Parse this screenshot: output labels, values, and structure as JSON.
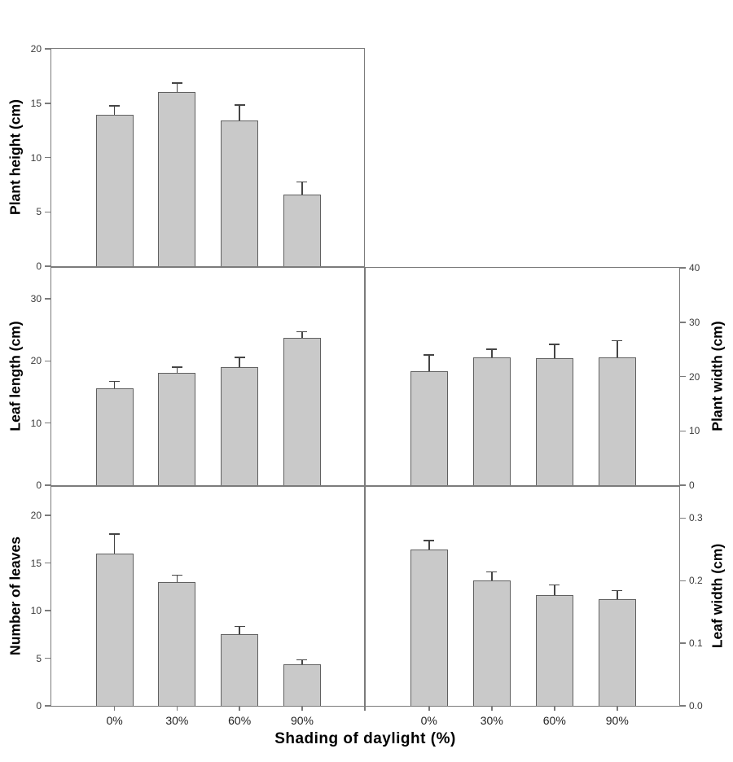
{
  "figure": {
    "xlabel": "Shading of daylight (%)",
    "categories": [
      "0%",
      "30%",
      "60%",
      "90%"
    ]
  },
  "colors": {
    "bar_fill": "#c9c9c9",
    "bar_border": "#606060",
    "axis": "#7b7b7b",
    "error_bar": "#454545",
    "tick_label": "#3b3b3b",
    "title_text": "#000000"
  },
  "chart_data": [
    {
      "id": "plant-height",
      "type": "bar",
      "ylabel": "Plant height (cm)",
      "axis_side": "left",
      "categories": [
        "0%",
        "30%",
        "60%",
        "90%"
      ],
      "values": [
        13.9,
        16.0,
        13.4,
        6.6
      ],
      "errors_plus": [
        0.9,
        0.9,
        1.5,
        1.2
      ],
      "ylim": [
        0,
        20
      ],
      "yticks": [
        0,
        5,
        10,
        15,
        20
      ],
      "ytick_labels": [
        "0",
        "5",
        "10",
        "15",
        "20"
      ],
      "grid": false
    },
    {
      "id": "leaf-length",
      "type": "bar",
      "ylabel": "Leaf length (cm)",
      "axis_side": "left",
      "categories": [
        "0%",
        "30%",
        "60%",
        "90%"
      ],
      "values": [
        15.6,
        18.1,
        19.0,
        23.7
      ],
      "errors_plus": [
        1.2,
        1.0,
        1.7,
        1.1
      ],
      "ylim": [
        0,
        35
      ],
      "yticks": [
        0,
        10,
        20,
        30
      ],
      "ytick_labels": [
        "0",
        "10",
        "20",
        "30"
      ],
      "grid": false
    },
    {
      "id": "plant-width",
      "type": "bar",
      "ylabel": "Plant width (cm)",
      "axis_side": "right",
      "categories": [
        "0%",
        "30%",
        "60%",
        "90%"
      ],
      "values": [
        21.0,
        23.5,
        23.3,
        23.5
      ],
      "errors_plus": [
        3.1,
        1.6,
        2.7,
        3.2
      ],
      "ylim": [
        0,
        40
      ],
      "yticks": [
        0,
        10,
        20,
        30,
        40
      ],
      "ytick_labels": [
        "0",
        "10",
        "20",
        "30",
        "40"
      ],
      "grid": false
    },
    {
      "id": "number-of-leaves",
      "type": "bar",
      "ylabel": "Number of leaves",
      "axis_side": "left",
      "categories": [
        "0%",
        "30%",
        "60%",
        "90%"
      ],
      "values": [
        16.0,
        13.0,
        7.5,
        4.4
      ],
      "errors_plus": [
        2.1,
        0.8,
        0.9,
        0.5
      ],
      "ylim": [
        0,
        23
      ],
      "yticks": [
        0,
        5,
        10,
        15,
        20
      ],
      "ytick_labels": [
        "0",
        "5",
        "10",
        "15",
        "20"
      ],
      "grid": false
    },
    {
      "id": "leaf-width",
      "type": "bar",
      "ylabel": "Leaf width (cm)",
      "axis_side": "right",
      "categories": [
        "0%",
        "30%",
        "60%",
        "90%"
      ],
      "values": [
        0.25,
        0.2,
        0.177,
        0.17
      ],
      "errors_plus": [
        0.015,
        0.015,
        0.017,
        0.015
      ],
      "ylim": [
        0,
        0.35
      ],
      "yticks": [
        0,
        0.1,
        0.2,
        0.3
      ],
      "ytick_labels": [
        "0.0",
        "0.1",
        "0.2",
        "0.3"
      ],
      "grid": false
    }
  ]
}
